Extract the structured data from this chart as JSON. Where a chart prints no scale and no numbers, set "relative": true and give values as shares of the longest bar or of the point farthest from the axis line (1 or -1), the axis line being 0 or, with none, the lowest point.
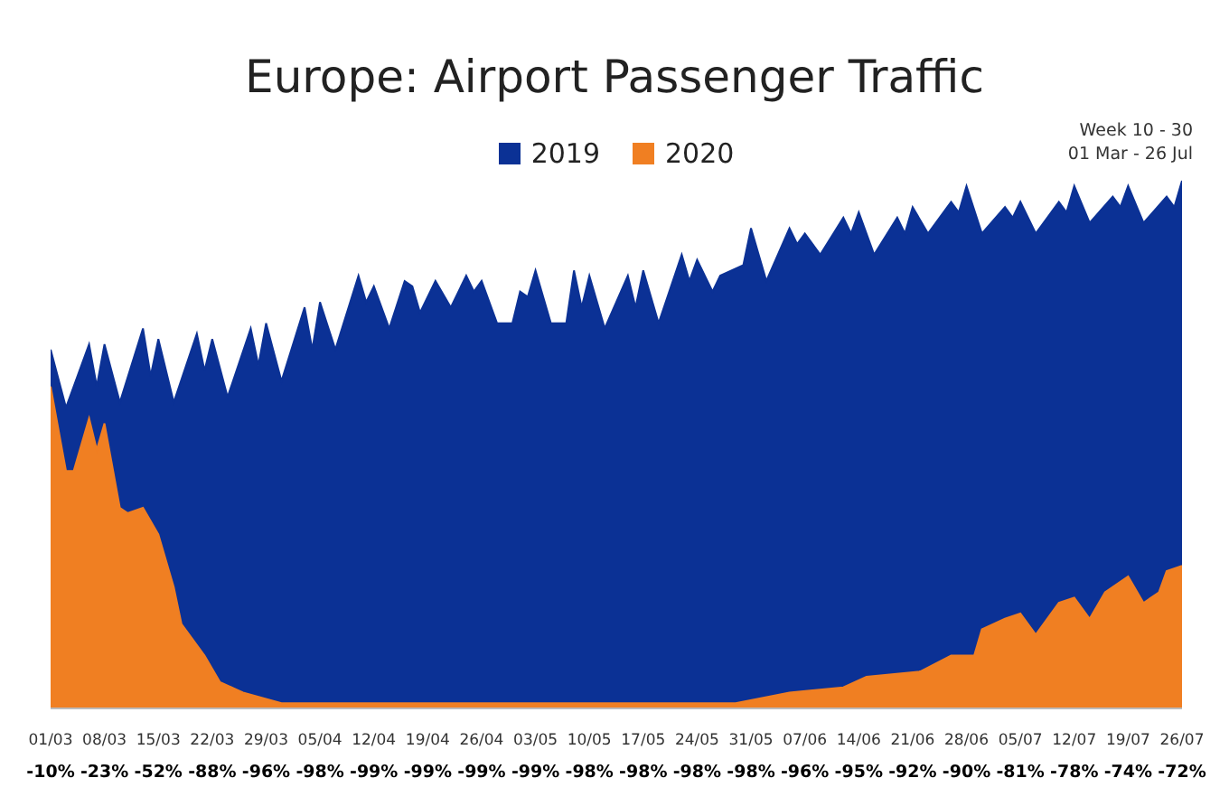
{
  "chart_data": {
    "type": "area",
    "title": "Europe: Airport Passenger Traffic",
    "relative": true,
    "legend": "top",
    "annotations": [
      "Week 10 - 30",
      "01 Mar - 26 Jul",
      "-10%",
      "-23%",
      "-52%",
      "-88%",
      "-96%",
      "-98%",
      "-99%",
      "-99%",
      "-99%",
      "-99%",
      "-98%",
      "-98%",
      "-98%",
      "-98%",
      "-96%",
      "-95%",
      "-92%",
      "-90%",
      "-81%",
      "-78%",
      "-74%",
      "-72%"
    ],
    "xlim": [
      "--03-01",
      "--07-26"
    ],
    "xticks": [
      {
        "value": "--03-01",
        "label": "01/03"
      },
      {
        "value": "--03-08",
        "label": "08/03"
      },
      {
        "value": "--03-15",
        "label": "15/03"
      },
      {
        "value": "--03-22",
        "label": "22/03"
      },
      {
        "value": "--03-29",
        "label": "29/03"
      },
      {
        "value": "--04-05",
        "label": "05/04"
      },
      {
        "value": "--04-12",
        "label": "12/04"
      },
      {
        "value": "--04-19",
        "label": "19/04"
      },
      {
        "value": "--04-26",
        "label": "26/04"
      },
      {
        "value": "--05-03",
        "label": "03/05"
      },
      {
        "value": "--05-10",
        "label": "10/05"
      },
      {
        "value": "--05-17",
        "label": "17/05"
      },
      {
        "value": "--05-24",
        "label": "24/05"
      },
      {
        "value": "--05-31",
        "label": "31/05"
      },
      {
        "value": "--06-07",
        "label": "07/06"
      },
      {
        "value": "--06-14",
        "label": "14/06"
      },
      {
        "value": "--06-21",
        "label": "21/06"
      },
      {
        "value": "--06-28",
        "label": "28/06"
      },
      {
        "value": "--07-05",
        "label": "05/07"
      },
      {
        "value": "--07-12",
        "label": "12/07"
      },
      {
        "value": "--07-19",
        "label": "19/07"
      },
      {
        "value": "--07-26",
        "label": "26/07"
      }
    ],
    "series": [
      {
        "name": "2019",
        "color": "#0b3195",
        "x": [
          "--03-01",
          "--03-03",
          "--03-06",
          "--03-07",
          "--03-08",
          "--03-10",
          "--03-13",
          "--03-14",
          "--03-15",
          "--03-17",
          "--03-20",
          "--03-21",
          "--03-22",
          "--03-24",
          "--03-27",
          "--03-28",
          "--03-29",
          "--03-31",
          "--04-03",
          "--04-04",
          "--04-05",
          "--04-07",
          "--04-10",
          "--04-11",
          "--04-12",
          "--04-14",
          "--04-16",
          "--04-17",
          "--04-18",
          "--04-20",
          "--04-22",
          "--04-24",
          "--04-25",
          "--04-26",
          "--04-28",
          "--04-30",
          "--05-01",
          "--05-02",
          "--05-03",
          "--05-05",
          "--05-07",
          "--05-08",
          "--05-09",
          "--05-10",
          "--05-12",
          "--05-15",
          "--05-16",
          "--05-17",
          "--05-19",
          "--05-22",
          "--05-23",
          "--05-24",
          "--05-26",
          "--05-27",
          "--05-30",
          "--05-31",
          "--06-02",
          "--06-05",
          "--06-06",
          "--06-07",
          "--06-09",
          "--06-12",
          "--06-13",
          "--06-14",
          "--06-16",
          "--06-19",
          "--06-20",
          "--06-21",
          "--06-23",
          "--06-26",
          "--06-27",
          "--06-28",
          "--06-30",
          "--07-03",
          "--07-04",
          "--07-05",
          "--07-07",
          "--07-10",
          "--07-11",
          "--07-12",
          "--07-14",
          "--07-17",
          "--07-18",
          "--07-19",
          "--07-21",
          "--07-24",
          "--07-25",
          "--07-26"
        ],
        "values": [
          0.68,
          0.57,
          0.69,
          0.61,
          0.69,
          0.58,
          0.72,
          0.63,
          0.7,
          0.58,
          0.71,
          0.64,
          0.7,
          0.59,
          0.72,
          0.65,
          0.73,
          0.62,
          0.76,
          0.68,
          0.77,
          0.68,
          0.82,
          0.77,
          0.8,
          0.72,
          0.81,
          0.8,
          0.75,
          0.81,
          0.76,
          0.82,
          0.79,
          0.81,
          0.73,
          0.73,
          0.79,
          0.78,
          0.83,
          0.73,
          0.73,
          0.83,
          0.76,
          0.82,
          0.72,
          0.82,
          0.76,
          0.83,
          0.73,
          0.86,
          0.81,
          0.85,
          0.79,
          0.82,
          0.84,
          0.91,
          0.81,
          0.91,
          0.88,
          0.9,
          0.86,
          0.93,
          0.9,
          0.94,
          0.86,
          0.93,
          0.9,
          0.95,
          0.9,
          0.96,
          0.94,
          0.99,
          0.9,
          0.95,
          0.93,
          0.96,
          0.9,
          0.96,
          0.94,
          0.99,
          0.92,
          0.97,
          0.95,
          0.99,
          0.92,
          0.97,
          0.95,
          1.0
        ]
      },
      {
        "name": "2020",
        "color": "#f07f22",
        "x": [
          "--03-01",
          "--03-03",
          "--03-04",
          "--03-06",
          "--03-07",
          "--03-08",
          "--03-10",
          "--03-11",
          "--03-13",
          "--03-15",
          "--03-17",
          "--03-18",
          "--03-21",
          "--03-23",
          "--03-26",
          "--03-31",
          "--04-04",
          "--04-30",
          "--05-15",
          "--05-29",
          "--06-05",
          "--06-12",
          "--06-15",
          "--06-22",
          "--06-26",
          "--06-29",
          "--06-30",
          "--07-03",
          "--07-05",
          "--07-07",
          "--07-10",
          "--07-12",
          "--07-14",
          "--07-16",
          "--07-19",
          "--07-21",
          "--07-23",
          "--07-24",
          "--07-26"
        ],
        "values": [
          0.61,
          0.45,
          0.45,
          0.55,
          0.49,
          0.54,
          0.38,
          0.37,
          0.38,
          0.33,
          0.23,
          0.16,
          0.1,
          0.05,
          0.03,
          0.01,
          0.01,
          0.01,
          0.01,
          0.01,
          0.03,
          0.04,
          0.06,
          0.07,
          0.1,
          0.1,
          0.15,
          0.17,
          0.18,
          0.14,
          0.2,
          0.21,
          0.17,
          0.22,
          0.25,
          0.2,
          0.22,
          0.26,
          0.27
        ]
      }
    ]
  }
}
